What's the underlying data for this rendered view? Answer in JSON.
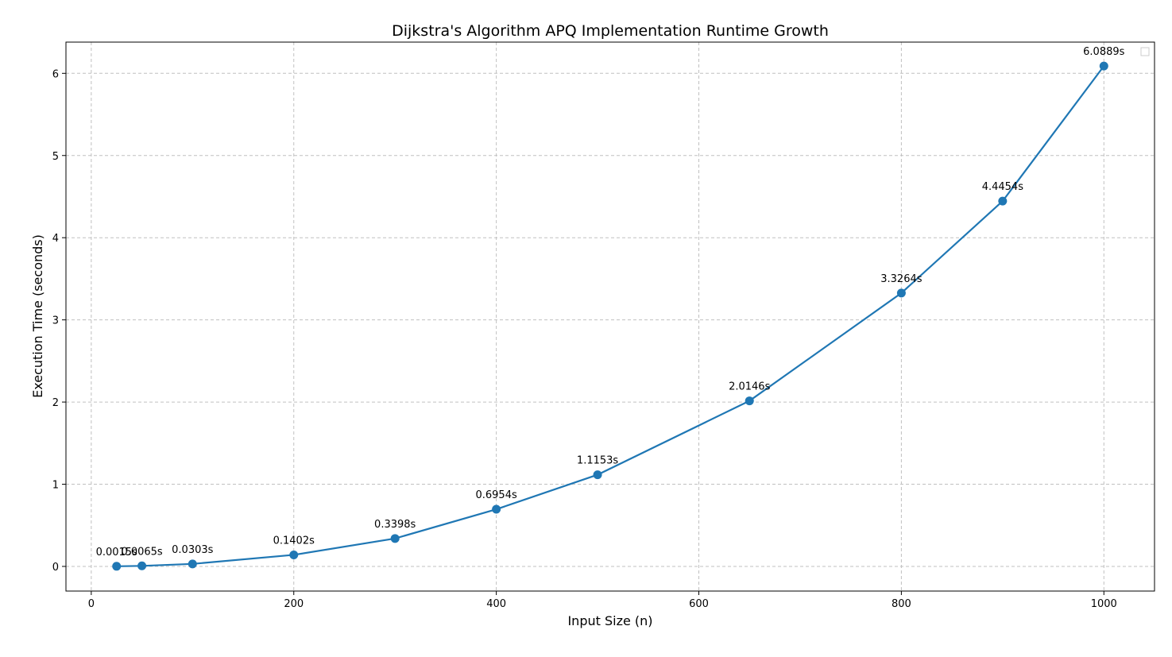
{
  "chart_data": {
    "type": "line",
    "title": "Dijkstra's Algorithm APQ Implementation Runtime Growth",
    "xlabel": "Input Size (n)",
    "ylabel": "Execution Time (seconds)",
    "xlim": [
      -25,
      1050
    ],
    "ylim": [
      -0.3,
      6.38
    ],
    "x_ticks": [
      0,
      200,
      400,
      600,
      800,
      1000
    ],
    "y_ticks": [
      0,
      1,
      2,
      3,
      4,
      5,
      6
    ],
    "grid": true,
    "legend": "top-right (empty)",
    "line_color": "#1f77b4",
    "series": [
      {
        "x": [
          25,
          50,
          100,
          200,
          300,
          400,
          500,
          650,
          800,
          900,
          1000
        ],
        "y": [
          0.0015,
          0.0065,
          0.0303,
          0.1402,
          0.3398,
          0.6954,
          1.1153,
          2.0146,
          3.3264,
          4.4454,
          6.0889
        ],
        "labels": [
          "0.0015s",
          "0.0065s",
          "0.0303s",
          "0.1402s",
          "0.3398s",
          "0.6954s",
          "1.1153s",
          "2.0146s",
          "3.3264s",
          "4.4454s",
          "6.0889s"
        ]
      }
    ]
  }
}
